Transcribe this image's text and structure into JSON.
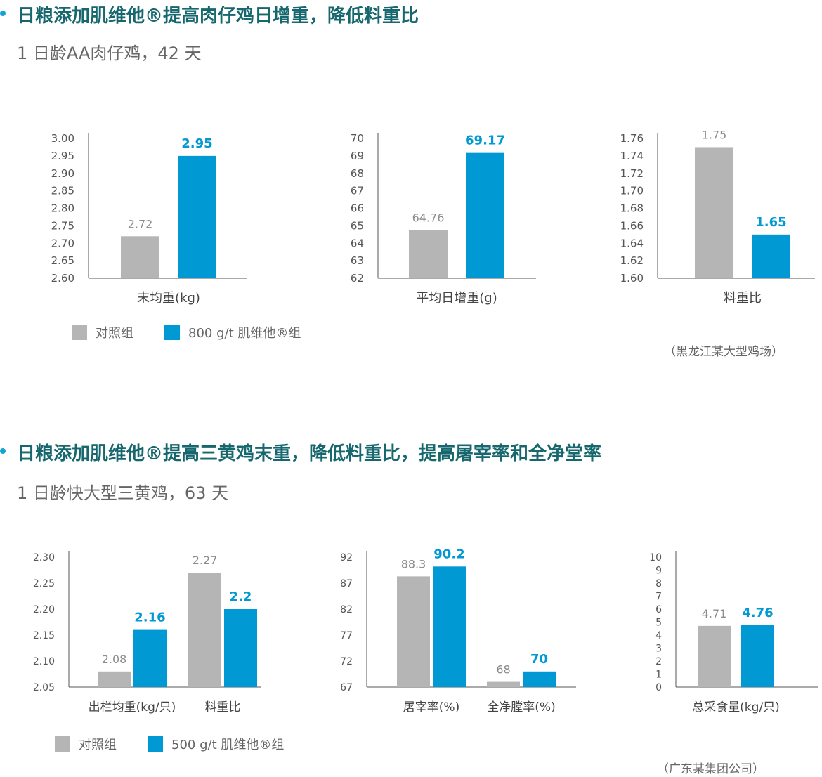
{
  "section1": {
    "title": "日粮添加肌维他®提高肉仔鸡日增重，降低料重比",
    "subtitle": "1 日龄AA肉仔鸡，42 天",
    "legend": [
      "对照组",
      "800 g/t 肌维他®组"
    ],
    "source": "（黑龙江某大型鸡场）"
  },
  "section2": {
    "title": "日粮添加肌维他®提高三黄鸡末重，降低料重比，提高屠宰率和全净堂率",
    "subtitle": "1 日龄快大型三黄鸡，63 天",
    "legend": [
      "对照组",
      "500 g/t 肌维他®组"
    ],
    "source": "（广东某集团公司）"
  },
  "colors": {
    "control": "#b5b5b5",
    "treatment": "#0099d4",
    "heading": "#16686e",
    "axis": "#555555"
  },
  "chart_data": [
    {
      "type": "bar",
      "categories": [
        "末均重(kg)"
      ],
      "series": [
        {
          "name": "对照组",
          "values": [
            2.72
          ]
        },
        {
          "name": "800 g/t 肌维他®组",
          "values": [
            2.95
          ]
        }
      ],
      "value_labels": [
        [
          "2.72"
        ],
        [
          "2.95"
        ]
      ],
      "ylim": [
        2.6,
        3.0
      ],
      "yticks": [
        "2.60",
        "2.65",
        "2.70",
        "2.75",
        "2.80",
        "2.85",
        "2.90",
        "2.95",
        "3.00"
      ]
    },
    {
      "type": "bar",
      "categories": [
        "平均日增重(g)"
      ],
      "series": [
        {
          "name": "对照组",
          "values": [
            64.76
          ]
        },
        {
          "name": "800 g/t 肌维他®组",
          "values": [
            69.17
          ]
        }
      ],
      "value_labels": [
        [
          "64.76"
        ],
        [
          "69.17"
        ]
      ],
      "ylim": [
        62,
        70
      ],
      "yticks": [
        "62",
        "63",
        "64",
        "65",
        "66",
        "67",
        "68",
        "69",
        "70"
      ]
    },
    {
      "type": "bar",
      "categories": [
        "料重比"
      ],
      "series": [
        {
          "name": "对照组",
          "values": [
            1.75
          ]
        },
        {
          "name": "800 g/t 肌维他®组",
          "values": [
            1.65
          ]
        }
      ],
      "value_labels": [
        [
          "1.75"
        ],
        [
          "1.65"
        ]
      ],
      "ylim": [
        1.6,
        1.76
      ],
      "yticks": [
        "1.60",
        "1.62",
        "1.64",
        "1.66",
        "1.68",
        "1.70",
        "1.72",
        "1.74",
        "1.76"
      ]
    },
    {
      "type": "bar",
      "categories": [
        "出栏均重(kg/只)",
        "料重比"
      ],
      "series": [
        {
          "name": "对照组",
          "values": [
            2.08,
            2.27
          ]
        },
        {
          "name": "500 g/t 肌维他®组",
          "values": [
            2.16,
            2.2
          ]
        }
      ],
      "value_labels": [
        [
          "2.08",
          "2.27"
        ],
        [
          "2.16",
          "2.2"
        ]
      ],
      "ylim": [
        2.05,
        2.3
      ],
      "yticks": [
        "2.05",
        "2.10",
        "2.15",
        "2.20",
        "2.25",
        "2.30"
      ]
    },
    {
      "type": "bar",
      "categories": [
        "屠宰率(%)",
        "全净膛率(%)"
      ],
      "series": [
        {
          "name": "对照组",
          "values": [
            88.3,
            68
          ]
        },
        {
          "name": "500 g/t 肌维他®组",
          "values": [
            90.2,
            70
          ]
        }
      ],
      "value_labels": [
        [
          "88.3",
          "68"
        ],
        [
          "90.2",
          "70"
        ]
      ],
      "ylim": [
        67,
        92
      ],
      "yticks": [
        "67",
        "72",
        "77",
        "82",
        "87",
        "92"
      ]
    },
    {
      "type": "bar",
      "categories": [
        "总采食量(kg/只)"
      ],
      "series": [
        {
          "name": "对照组",
          "values": [
            4.71
          ]
        },
        {
          "name": "500 g/t 肌维他®组",
          "values": [
            4.76
          ]
        }
      ],
      "value_labels": [
        [
          "4.71"
        ],
        [
          "4.76"
        ]
      ],
      "ylim": [
        0,
        10
      ],
      "yticks": [
        "0",
        "1",
        "2",
        "3",
        "4",
        "5",
        "6",
        "7",
        "8",
        "9",
        "10"
      ]
    }
  ]
}
